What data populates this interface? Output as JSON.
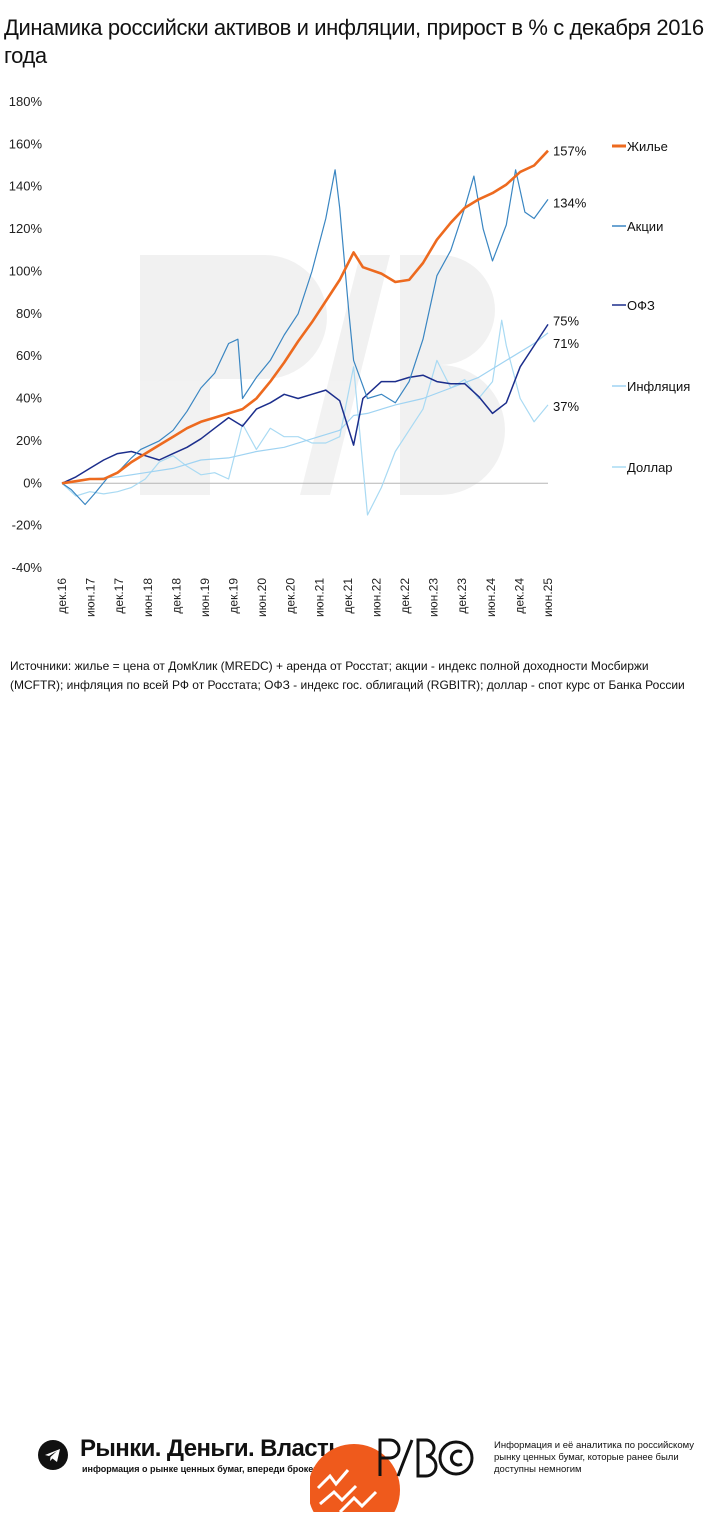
{
  "title": "Динамика российски активов и инфляции, прирост в % с декабря 2016 года",
  "source_text": "Источники: жилье = цена от ДомКлик (MREDC) + аренда от Росстат; акции - индекс полной доходности Мосбиржи (MCFTR); инфляция по всей РФ от Росстата; ОФЗ - индекс гос. облигаций (RGBITR); доллар - спот курс от Банка России",
  "footer": {
    "brand": "Рынки. Деньги. Власть.",
    "tagline": "информация о рынке ценных бумаг, впереди брокеров и банков.",
    "right_text": "Информация и её аналитика по российскому рынку ценных бумаг, которые ранее были доступны немногим",
    "icons": [
      "telegram-icon",
      "rdv-logo",
      "copyright-icon"
    ]
  },
  "chart_data": {
    "type": "line",
    "title": "Динамика российски активов и инфляции, прирост в % с декабря 2016 года",
    "xlabel": "",
    "ylabel": "",
    "ylim": [
      -40,
      180
    ],
    "yticks": [
      -40,
      -20,
      0,
      20,
      40,
      60,
      80,
      100,
      120,
      140,
      160,
      180
    ],
    "ytick_labels": [
      "-40%",
      "-20%",
      "0%",
      "20%",
      "40%",
      "60%",
      "80%",
      "100%",
      "120%",
      "140%",
      "160%",
      "180%"
    ],
    "x_range": [
      "2016-12",
      "2025-09"
    ],
    "x_tick_labels": [
      "дек.16",
      "июн.17",
      "дек.17",
      "июн.18",
      "дек.18",
      "июн.19",
      "дек.19",
      "июн.20",
      "дек.20",
      "июн.21",
      "дек.21",
      "июн.22",
      "дек.22",
      "июн.23",
      "дек.23",
      "июн.24",
      "дек.24",
      "июн.25"
    ],
    "grid": false,
    "legend_position": "right",
    "series": [
      {
        "name": "Жилье",
        "color": "#ed6a1f",
        "end_label": "157%",
        "points": [
          [
            "2016-12",
            0
          ],
          [
            "2017-03",
            1
          ],
          [
            "2017-06",
            2
          ],
          [
            "2017-09",
            2
          ],
          [
            "2017-12",
            5
          ],
          [
            "2018-03",
            10
          ],
          [
            "2018-06",
            14
          ],
          [
            "2018-09",
            18
          ],
          [
            "2018-12",
            22
          ],
          [
            "2019-03",
            26
          ],
          [
            "2019-06",
            29
          ],
          [
            "2019-09",
            31
          ],
          [
            "2019-12",
            33
          ],
          [
            "2020-03",
            35
          ],
          [
            "2020-06",
            40
          ],
          [
            "2020-09",
            48
          ],
          [
            "2020-12",
            57
          ],
          [
            "2021-03",
            67
          ],
          [
            "2021-06",
            76
          ],
          [
            "2021-09",
            86
          ],
          [
            "2021-12",
            96
          ],
          [
            "2022-03",
            109
          ],
          [
            "2022-05",
            102
          ],
          [
            "2022-09",
            99
          ],
          [
            "2022-12",
            95
          ],
          [
            "2023-03",
            96
          ],
          [
            "2023-06",
            104
          ],
          [
            "2023-09",
            115
          ],
          [
            "2023-12",
            123
          ],
          [
            "2024-03",
            130
          ],
          [
            "2024-06",
            134
          ],
          [
            "2024-09",
            137
          ],
          [
            "2024-12",
            141
          ],
          [
            "2025-03",
            147
          ],
          [
            "2025-06",
            150
          ],
          [
            "2025-09",
            157
          ]
        ]
      },
      {
        "name": "Акции",
        "color": "#3a86c2",
        "end_label": "134%",
        "points": [
          [
            "2016-12",
            0
          ],
          [
            "2017-02",
            -3
          ],
          [
            "2017-05",
            -10
          ],
          [
            "2017-07",
            -5
          ],
          [
            "2017-10",
            3
          ],
          [
            "2017-12",
            5
          ],
          [
            "2018-03",
            12
          ],
          [
            "2018-05",
            16
          ],
          [
            "2018-09",
            20
          ],
          [
            "2018-12",
            25
          ],
          [
            "2019-03",
            34
          ],
          [
            "2019-06",
            45
          ],
          [
            "2019-09",
            52
          ],
          [
            "2019-12",
            66
          ],
          [
            "2020-02",
            68
          ],
          [
            "2020-03",
            40
          ],
          [
            "2020-06",
            50
          ],
          [
            "2020-09",
            58
          ],
          [
            "2020-12",
            70
          ],
          [
            "2021-03",
            80
          ],
          [
            "2021-06",
            100
          ],
          [
            "2021-09",
            125
          ],
          [
            "2021-11",
            148
          ],
          [
            "2021-12",
            130
          ],
          [
            "2022-02",
            80
          ],
          [
            "2022-03",
            58
          ],
          [
            "2022-06",
            40
          ],
          [
            "2022-09",
            42
          ],
          [
            "2022-12",
            38
          ],
          [
            "2023-03",
            48
          ],
          [
            "2023-06",
            68
          ],
          [
            "2023-09",
            98
          ],
          [
            "2023-12",
            110
          ],
          [
            "2024-03",
            130
          ],
          [
            "2024-05",
            145
          ],
          [
            "2024-07",
            120
          ],
          [
            "2024-09",
            105
          ],
          [
            "2024-12",
            122
          ],
          [
            "2025-02",
            148
          ],
          [
            "2025-04",
            128
          ],
          [
            "2025-06",
            125
          ],
          [
            "2025-09",
            134
          ]
        ]
      },
      {
        "name": "ОФЗ",
        "color": "#1c2e8c",
        "end_label": "75%",
        "points": [
          [
            "2016-12",
            0
          ],
          [
            "2017-03",
            3
          ],
          [
            "2017-06",
            7
          ],
          [
            "2017-09",
            11
          ],
          [
            "2017-12",
            14
          ],
          [
            "2018-03",
            15
          ],
          [
            "2018-06",
            13
          ],
          [
            "2018-09",
            11
          ],
          [
            "2018-12",
            14
          ],
          [
            "2019-03",
            17
          ],
          [
            "2019-06",
            21
          ],
          [
            "2019-09",
            26
          ],
          [
            "2019-12",
            31
          ],
          [
            "2020-03",
            27
          ],
          [
            "2020-06",
            35
          ],
          [
            "2020-09",
            38
          ],
          [
            "2020-12",
            42
          ],
          [
            "2021-03",
            40
          ],
          [
            "2021-06",
            42
          ],
          [
            "2021-09",
            44
          ],
          [
            "2021-12",
            39
          ],
          [
            "2022-03",
            18
          ],
          [
            "2022-05",
            40
          ],
          [
            "2022-09",
            48
          ],
          [
            "2022-12",
            48
          ],
          [
            "2023-03",
            50
          ],
          [
            "2023-06",
            51
          ],
          [
            "2023-09",
            48
          ],
          [
            "2023-12",
            47
          ],
          [
            "2024-03",
            47
          ],
          [
            "2024-06",
            41
          ],
          [
            "2024-09",
            33
          ],
          [
            "2024-12",
            38
          ],
          [
            "2025-03",
            55
          ],
          [
            "2025-06",
            65
          ],
          [
            "2025-09",
            75
          ]
        ]
      },
      {
        "name": "Инфляция",
        "color": "#9fd3f2",
        "end_label": "71%",
        "points": [
          [
            "2016-12",
            0
          ],
          [
            "2017-06",
            2
          ],
          [
            "2017-12",
            3
          ],
          [
            "2018-06",
            5
          ],
          [
            "2018-12",
            7
          ],
          [
            "2019-06",
            11
          ],
          [
            "2019-12",
            12
          ],
          [
            "2020-06",
            15
          ],
          [
            "2020-12",
            17
          ],
          [
            "2021-06",
            21
          ],
          [
            "2021-12",
            25
          ],
          [
            "2022-03",
            32
          ],
          [
            "2022-06",
            33
          ],
          [
            "2022-12",
            37
          ],
          [
            "2023-06",
            40
          ],
          [
            "2023-12",
            45
          ],
          [
            "2024-06",
            50
          ],
          [
            "2024-12",
            58
          ],
          [
            "2025-06",
            66
          ],
          [
            "2025-09",
            71
          ]
        ]
      },
      {
        "name": "Доллар",
        "color": "#a9daf3",
        "end_label": "37%",
        "points": [
          [
            "2016-12",
            0
          ],
          [
            "2017-03",
            -6
          ],
          [
            "2017-06",
            -4
          ],
          [
            "2017-09",
            -5
          ],
          [
            "2017-12",
            -4
          ],
          [
            "2018-03",
            -2
          ],
          [
            "2018-06",
            2
          ],
          [
            "2018-09",
            10
          ],
          [
            "2018-12",
            13
          ],
          [
            "2019-03",
            8
          ],
          [
            "2019-06",
            4
          ],
          [
            "2019-09",
            5
          ],
          [
            "2019-12",
            2
          ],
          [
            "2020-03",
            28
          ],
          [
            "2020-06",
            16
          ],
          [
            "2020-09",
            26
          ],
          [
            "2020-12",
            22
          ],
          [
            "2021-03",
            22
          ],
          [
            "2021-06",
            19
          ],
          [
            "2021-09",
            19
          ],
          [
            "2021-12",
            22
          ],
          [
            "2022-03",
            55
          ],
          [
            "2022-06",
            -15
          ],
          [
            "2022-09",
            -2
          ],
          [
            "2022-12",
            15
          ],
          [
            "2023-03",
            25
          ],
          [
            "2023-06",
            35
          ],
          [
            "2023-09",
            58
          ],
          [
            "2023-12",
            45
          ],
          [
            "2024-03",
            49
          ],
          [
            "2024-06",
            40
          ],
          [
            "2024-09",
            48
          ],
          [
            "2024-11",
            77
          ],
          [
            "2024-12",
            65
          ],
          [
            "2025-03",
            40
          ],
          [
            "2025-06",
            29
          ],
          [
            "2025-09",
            37
          ]
        ]
      }
    ]
  }
}
